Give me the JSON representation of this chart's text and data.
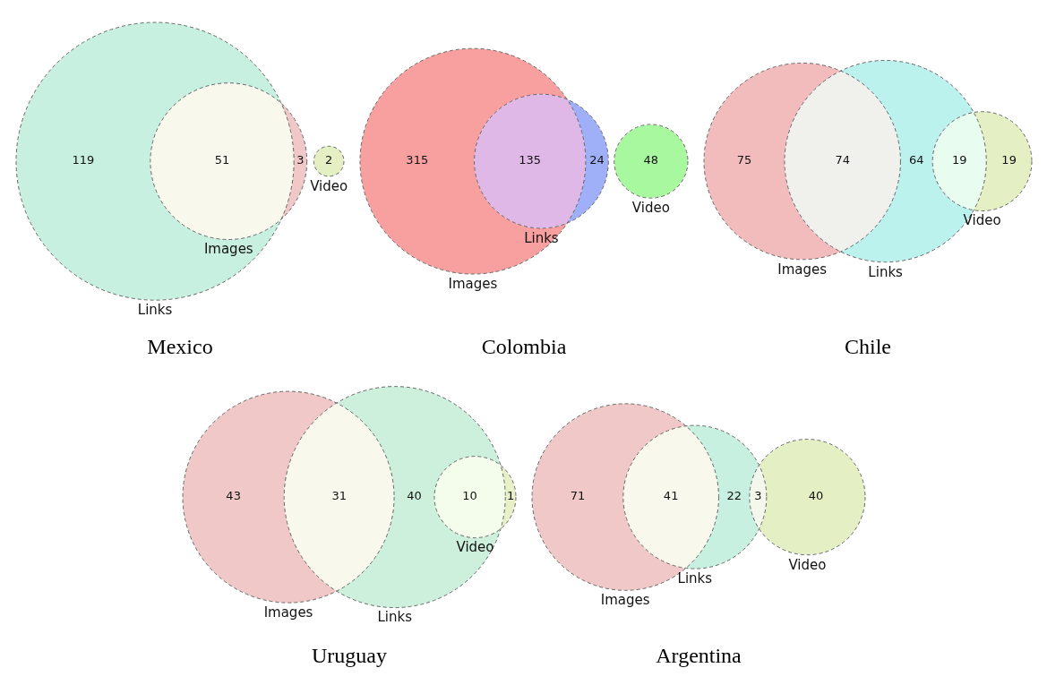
{
  "chart_data": [
    {
      "type": "other",
      "title": "Mexico",
      "categories": [
        null,
        null,
        null,
        null,
        null
      ],
      "values": [
        119,
        51,
        3,
        null,
        2
      ],
      "colors": [
        "#c8f0e0",
        "#f8f8ec",
        "#f0c8c8",
        null,
        "#e4f0c4"
      ],
      "annotations": [
        "Links",
        "Images",
        "Video"
      ],
      "data_labels": true
    },
    {
      "type": "other",
      "title": "Colombia",
      "categories": [
        null,
        null,
        null,
        null,
        null
      ],
      "values": [
        315,
        135,
        24,
        null,
        48
      ],
      "colors": [
        "#f8a0a0",
        "#e0b8e8",
        "#a0b0f8",
        null,
        "#a8f8a0"
      ],
      "annotations": [
        "Images",
        "Links",
        "Video"
      ],
      "data_labels": true
    },
    {
      "type": "other",
      "title": "Chile",
      "categories": [
        null,
        null,
        null,
        null,
        null
      ],
      "values": [
        75,
        74,
        64,
        19,
        19
      ],
      "colors": [
        "#f2bcbc",
        "#f0f0ec",
        "#bcf2ee",
        "#e8fcf0",
        "#e4f0c4"
      ],
      "annotations": [
        "Images",
        "Links",
        "Video"
      ],
      "data_labels": true
    },
    {
      "type": "other",
      "title": "Uruguay",
      "categories": [
        null,
        null,
        null,
        null,
        null
      ],
      "values": [
        43,
        31,
        40,
        10,
        1
      ],
      "colors": [
        "#f0c8c8",
        "#f8f8ec",
        "#ccf0dc",
        "#f4fcec",
        "#e8f0c8"
      ],
      "annotations": [
        "Images",
        "Links",
        "Video"
      ],
      "data_labels": true
    },
    {
      "type": "other",
      "title": "Argentina",
      "categories": [
        null,
        null,
        null,
        null,
        null
      ],
      "values": [
        71,
        41,
        22,
        3,
        40
      ],
      "colors": [
        "#f0c8c8",
        "#f8f8ec",
        "#c8f0e0",
        "#f4f8ec",
        "#e4f0c4"
      ],
      "annotations": [
        "Images",
        "Links",
        "Video"
      ],
      "data_labels": true
    }
  ]
}
